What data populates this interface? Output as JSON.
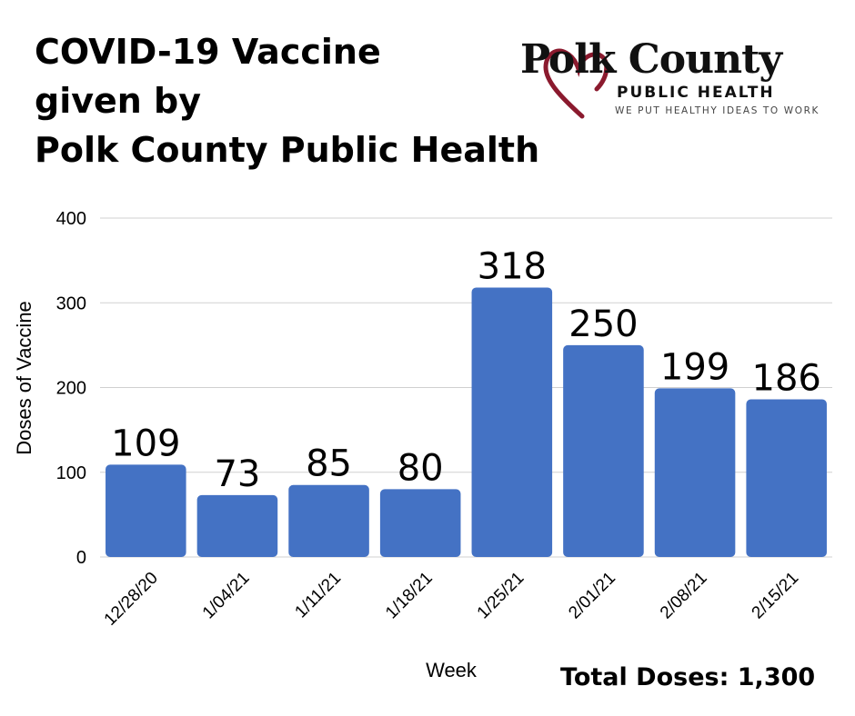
{
  "title_lines": [
    "COVID-19 Vaccine",
    "given by",
    "Polk County Public Health"
  ],
  "logo": {
    "name": "Polk County",
    "subtitle": "PUBLIC HEALTH",
    "tagline": "WE PUT HEALTHY IDEAS TO WORK"
  },
  "total_label": "Total Doses: 1,300",
  "colors": {
    "bar": "#4472c4",
    "grid": "#d0d0d0",
    "heart": "#8b1a2e"
  },
  "chart_data": {
    "type": "bar",
    "categories": [
      "12/28/20",
      "1/04/21",
      "1/11/21",
      "1/18/21",
      "1/25/21",
      "2/01/21",
      "2/08/21",
      "2/15/21"
    ],
    "values": [
      109,
      73,
      85,
      80,
      318,
      250,
      199,
      186
    ],
    "xlabel": "Week",
    "ylabel": "Doses of Vaccine",
    "ylim": [
      0,
      400
    ],
    "yticks": [
      0,
      100,
      200,
      300,
      400
    ],
    "grid": true
  }
}
